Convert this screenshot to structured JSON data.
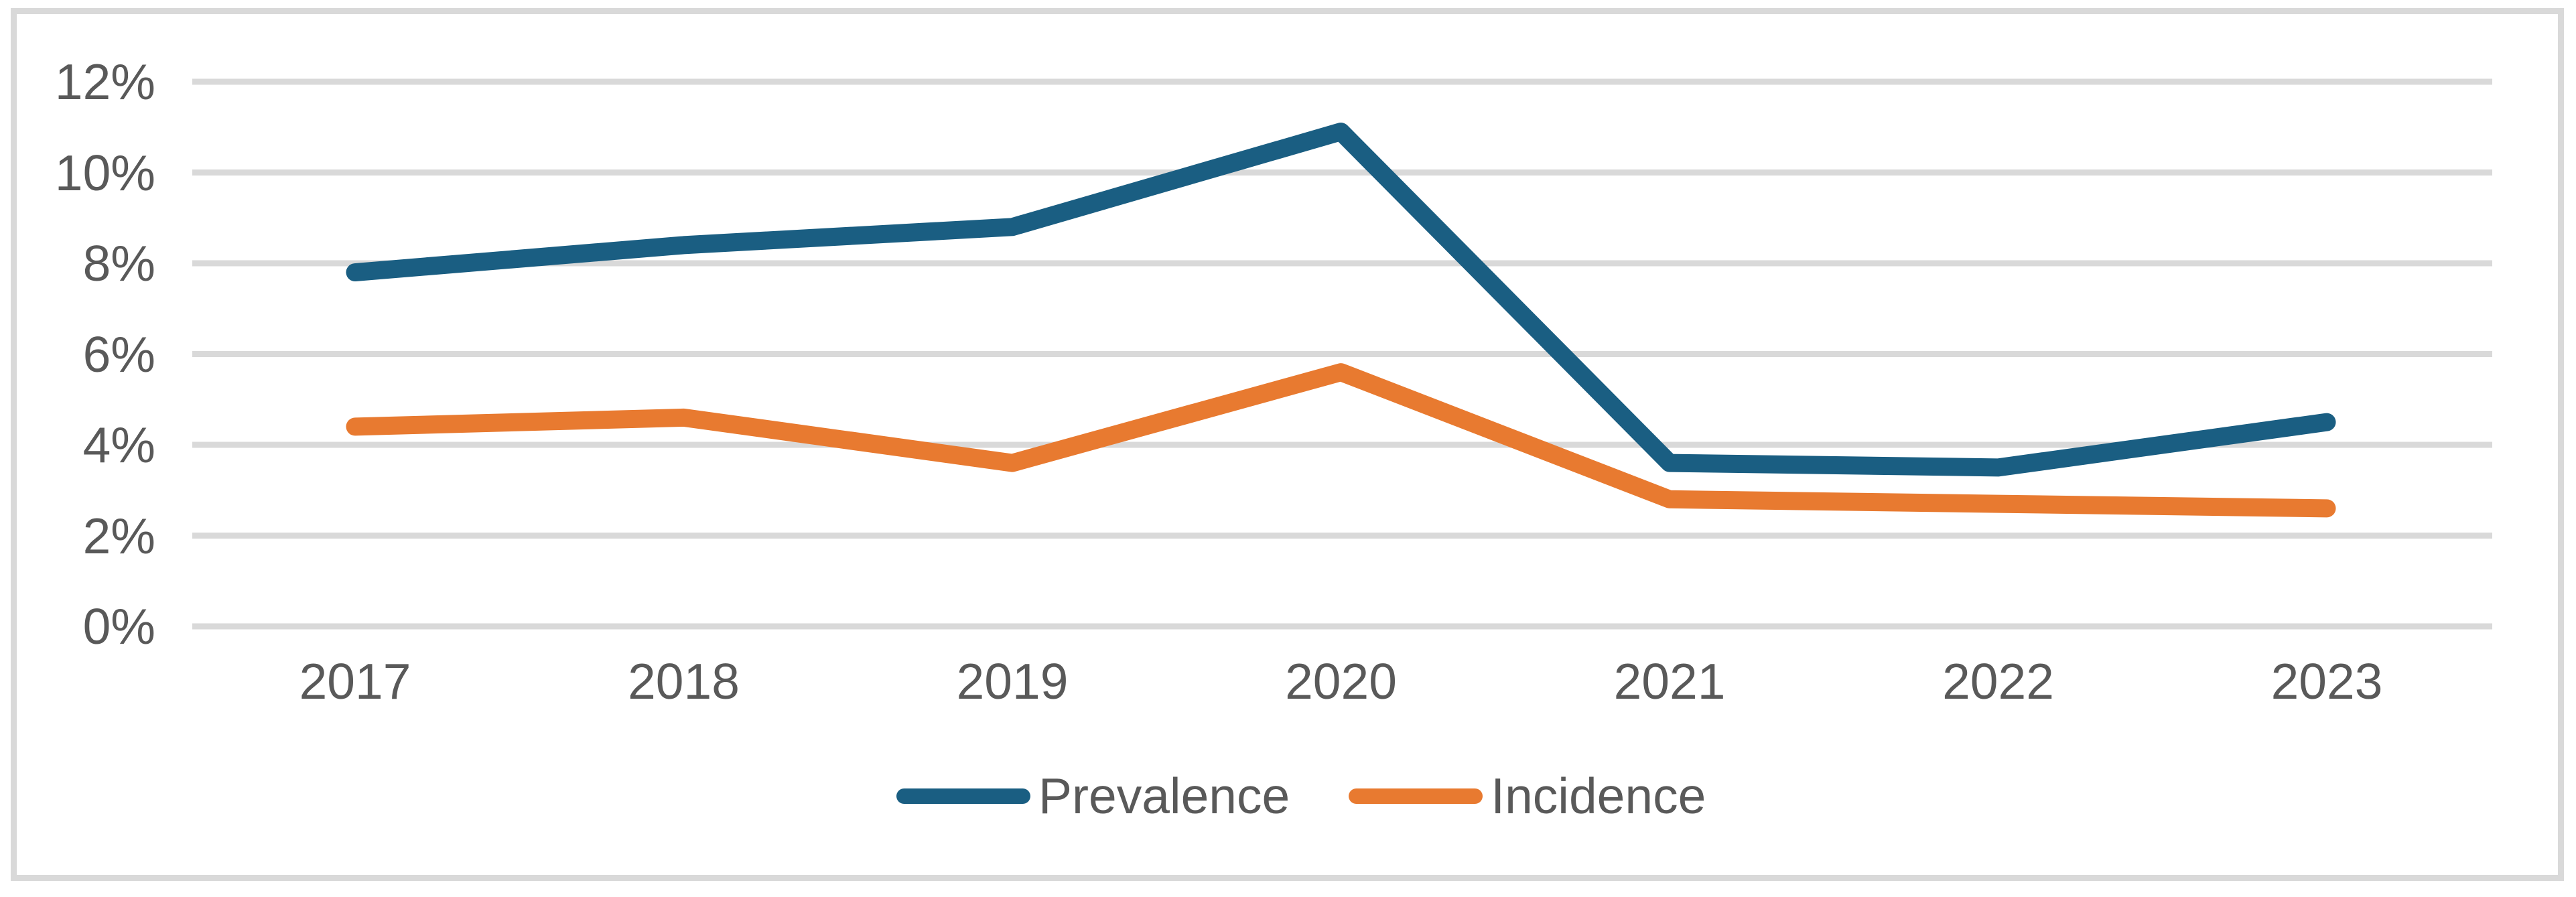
{
  "chart_data": {
    "type": "line",
    "title": "",
    "xlabel": "",
    "ylabel": "",
    "categories": [
      "2017",
      "2018",
      "2019",
      "2020",
      "2021",
      "2022",
      "2023"
    ],
    "series": [
      {
        "name": "Prevalence",
        "color": "#1A5E82",
        "values": [
          7.8,
          8.4,
          8.8,
          10.9,
          3.6,
          3.5,
          4.5
        ]
      },
      {
        "name": "Incidence",
        "color": "#E87A30",
        "values": [
          4.4,
          4.6,
          3.6,
          5.6,
          2.8,
          2.7,
          2.6
        ]
      }
    ],
    "ylim": [
      0,
      12
    ],
    "ytick_step": 2,
    "ytick_labels": [
      "0%",
      "2%",
      "4%",
      "6%",
      "8%",
      "10%",
      "12%"
    ],
    "grid": "horizontal",
    "legend_position": "bottom-center"
  },
  "legend": {
    "items": [
      {
        "label": "Prevalence",
        "color": "#1A5E82"
      },
      {
        "label": "Incidence",
        "color": "#E87A30"
      }
    ]
  },
  "colors": {
    "background": "#FFFFFF",
    "gridline": "#D9D9D9",
    "frame_border": "#D9D9D9",
    "axis_text": "#595959"
  }
}
